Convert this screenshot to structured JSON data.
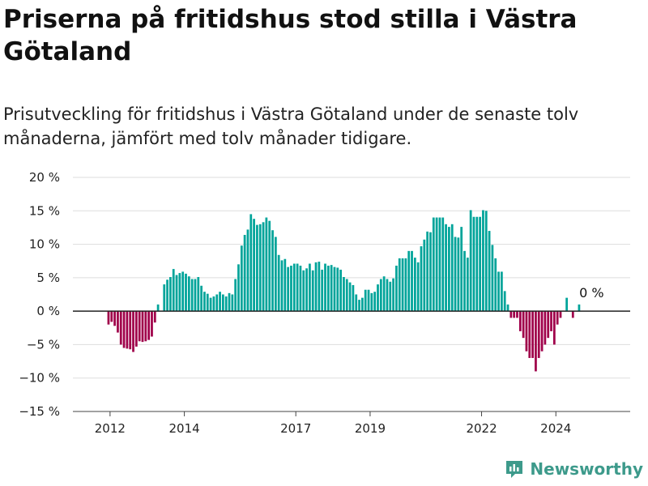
{
  "title": "Priserna på fritidshus stod stilla i Västra Götaland",
  "subtitle": "Prisutveckling för fritidshus i Västra Götaland under de senaste tolv månaderna, jämfört med tolv månader tidigare.",
  "brand": "Newsworthy",
  "colors": {
    "positive": "#00a49a",
    "negative": "#a0004a",
    "grid": "#dddddd",
    "baseline": "#222222",
    "brand": "#3d9a8b"
  },
  "chart_data": {
    "type": "bar",
    "x_start": "2011-01",
    "x_end": "2025-12",
    "x_ticks": [
      {
        "label": "2012",
        "x": 2012.0
      },
      {
        "label": "2014",
        "x": 2014.0
      },
      {
        "label": "2017",
        "x": 2017.0
      },
      {
        "label": "2019",
        "x": 2019.0
      },
      {
        "label": "2022",
        "x": 2022.0
      },
      {
        "label": "2024",
        "x": 2024.0
      }
    ],
    "y_ticks": [
      {
        "label": "20 %",
        "v": 20
      },
      {
        "label": "15 %",
        "v": 15
      },
      {
        "label": "10 %",
        "v": 10
      },
      {
        "label": "5 %",
        "v": 5
      },
      {
        "label": "0 %",
        "v": 0
      },
      {
        "label": "−5 %",
        "v": -5
      },
      {
        "label": "−10 %",
        "v": -10
      },
      {
        "label": "−15 %",
        "v": -15
      }
    ],
    "ylim": [
      -15,
      20
    ],
    "annotation": {
      "label": "0 %",
      "x": 2024.83,
      "y": 1.0
    },
    "values": [
      [
        "2011-12",
        -2
      ],
      [
        "2012-01",
        -1.6
      ],
      [
        "2012-02",
        -2.2
      ],
      [
        "2012-03",
        -3.2
      ],
      [
        "2012-04",
        -5
      ],
      [
        "2012-05",
        -5.5
      ],
      [
        "2012-06",
        -5.6
      ],
      [
        "2012-07",
        -5.7
      ],
      [
        "2012-08",
        -6.1
      ],
      [
        "2012-09",
        -5.3
      ],
      [
        "2012-10",
        -4.5
      ],
      [
        "2012-11",
        -4.6
      ],
      [
        "2012-12",
        -4.5
      ],
      [
        "2013-01",
        -4.3
      ],
      [
        "2013-02",
        -3.8
      ],
      [
        "2013-03",
        -1.7
      ],
      [
        "2013-04",
        1
      ],
      [
        "2013-06",
        4
      ],
      [
        "2013-07",
        4.7
      ],
      [
        "2013-08",
        5.1
      ],
      [
        "2013-09",
        6.3
      ],
      [
        "2013-10",
        5.4
      ],
      [
        "2013-11",
        5.7
      ],
      [
        "2013-12",
        5.9
      ],
      [
        "2014-01",
        5.6
      ],
      [
        "2014-02",
        5.2
      ],
      [
        "2014-03",
        4.8
      ],
      [
        "2014-04",
        4.8
      ],
      [
        "2014-05",
        5.1
      ],
      [
        "2014-06",
        3.8
      ],
      [
        "2014-07",
        2.9
      ],
      [
        "2014-08",
        2.6
      ],
      [
        "2014-09",
        2
      ],
      [
        "2014-10",
        2.2
      ],
      [
        "2014-11",
        2.5
      ],
      [
        "2014-12",
        2.9
      ],
      [
        "2015-01",
        2.5
      ],
      [
        "2015-02",
        2.2
      ],
      [
        "2015-03",
        2.7
      ],
      [
        "2015-04",
        2.5
      ],
      [
        "2015-05",
        4.8
      ],
      [
        "2015-06",
        7
      ],
      [
        "2015-07",
        9.8
      ],
      [
        "2015-08",
        11.4
      ],
      [
        "2015-09",
        12.2
      ],
      [
        "2015-10",
        14.5
      ],
      [
        "2015-11",
        13.8
      ],
      [
        "2015-12",
        12.9
      ],
      [
        "2016-01",
        13
      ],
      [
        "2016-02",
        13.3
      ],
      [
        "2016-03",
        14
      ],
      [
        "2016-04",
        13.5
      ],
      [
        "2016-05",
        12.1
      ],
      [
        "2016-06",
        11.1
      ],
      [
        "2016-07",
        8.4
      ],
      [
        "2016-08",
        7.6
      ],
      [
        "2016-09",
        7.8
      ],
      [
        "2016-10",
        6.6
      ],
      [
        "2016-11",
        6.8
      ],
      [
        "2016-12",
        7.1
      ],
      [
        "2017-01",
        7.1
      ],
      [
        "2017-02",
        6.8
      ],
      [
        "2017-03",
        6.1
      ],
      [
        "2017-04",
        6.4
      ],
      [
        "2017-05",
        7.1
      ],
      [
        "2017-06",
        6.1
      ],
      [
        "2017-07",
        7.3
      ],
      [
        "2017-08",
        7.4
      ],
      [
        "2017-09",
        6.2
      ],
      [
        "2017-10",
        7.1
      ],
      [
        "2017-11",
        6.8
      ],
      [
        "2017-12",
        6.9
      ],
      [
        "2018-01",
        6.6
      ],
      [
        "2018-02",
        6.5
      ],
      [
        "2018-03",
        6.2
      ],
      [
        "2018-04",
        5.1
      ],
      [
        "2018-05",
        4.8
      ],
      [
        "2018-06",
        4.3
      ],
      [
        "2018-07",
        3.9
      ],
      [
        "2018-08",
        2.5
      ],
      [
        "2018-09",
        1.7
      ],
      [
        "2018-10",
        2
      ],
      [
        "2018-11",
        3.2
      ],
      [
        "2018-12",
        3.2
      ],
      [
        "2019-01",
        2.7
      ],
      [
        "2019-02",
        2.9
      ],
      [
        "2019-03",
        4
      ],
      [
        "2019-04",
        4.8
      ],
      [
        "2019-05",
        5.2
      ],
      [
        "2019-06",
        4.8
      ],
      [
        "2019-07",
        4.4
      ],
      [
        "2019-08",
        4.9
      ],
      [
        "2019-09",
        6.8
      ],
      [
        "2019-10",
        7.9
      ],
      [
        "2019-11",
        7.9
      ],
      [
        "2019-12",
        7.9
      ],
      [
        "2020-01",
        9
      ],
      [
        "2020-02",
        9
      ],
      [
        "2020-03",
        8
      ],
      [
        "2020-04",
        7.3
      ],
      [
        "2020-05",
        9.7
      ],
      [
        "2020-06",
        10.7
      ],
      [
        "2020-07",
        11.9
      ],
      [
        "2020-08",
        11.8
      ],
      [
        "2020-09",
        14
      ],
      [
        "2020-10",
        14
      ],
      [
        "2020-11",
        14
      ],
      [
        "2020-12",
        14
      ],
      [
        "2021-01",
        13
      ],
      [
        "2021-02",
        12.6
      ],
      [
        "2021-03",
        13
      ],
      [
        "2021-04",
        11.1
      ],
      [
        "2021-05",
        11
      ],
      [
        "2021-06",
        12.6
      ],
      [
        "2021-07",
        9
      ],
      [
        "2021-08",
        8
      ],
      [
        "2021-09",
        15.1
      ],
      [
        "2021-10",
        14.1
      ],
      [
        "2021-11",
        14.1
      ],
      [
        "2021-12",
        14.1
      ],
      [
        "2022-01",
        15.1
      ],
      [
        "2022-02",
        15
      ],
      [
        "2022-03",
        12
      ],
      [
        "2022-04",
        9.9
      ],
      [
        "2022-05",
        7.9
      ],
      [
        "2022-06",
        5.9
      ],
      [
        "2022-07",
        5.9
      ],
      [
        "2022-08",
        3
      ],
      [
        "2022-09",
        1
      ],
      [
        "2022-10",
        -1
      ],
      [
        "2022-11",
        -1
      ],
      [
        "2022-12",
        -1
      ],
      [
        "2023-01",
        -3
      ],
      [
        "2023-02",
        -4
      ],
      [
        "2023-03",
        -6
      ],
      [
        "2023-04",
        -7
      ],
      [
        "2023-05",
        -7
      ],
      [
        "2023-06",
        -9
      ],
      [
        "2023-07",
        -7
      ],
      [
        "2023-08",
        -6
      ],
      [
        "2023-09",
        -5
      ],
      [
        "2023-10",
        -4
      ],
      [
        "2023-11",
        -3
      ],
      [
        "2023-12",
        -5
      ],
      [
        "2024-01",
        -2
      ],
      [
        "2024-02",
        -1
      ],
      [
        "2024-04",
        2
      ],
      [
        "2024-06",
        -1
      ],
      [
        "2024-08",
        1
      ]
    ]
  }
}
